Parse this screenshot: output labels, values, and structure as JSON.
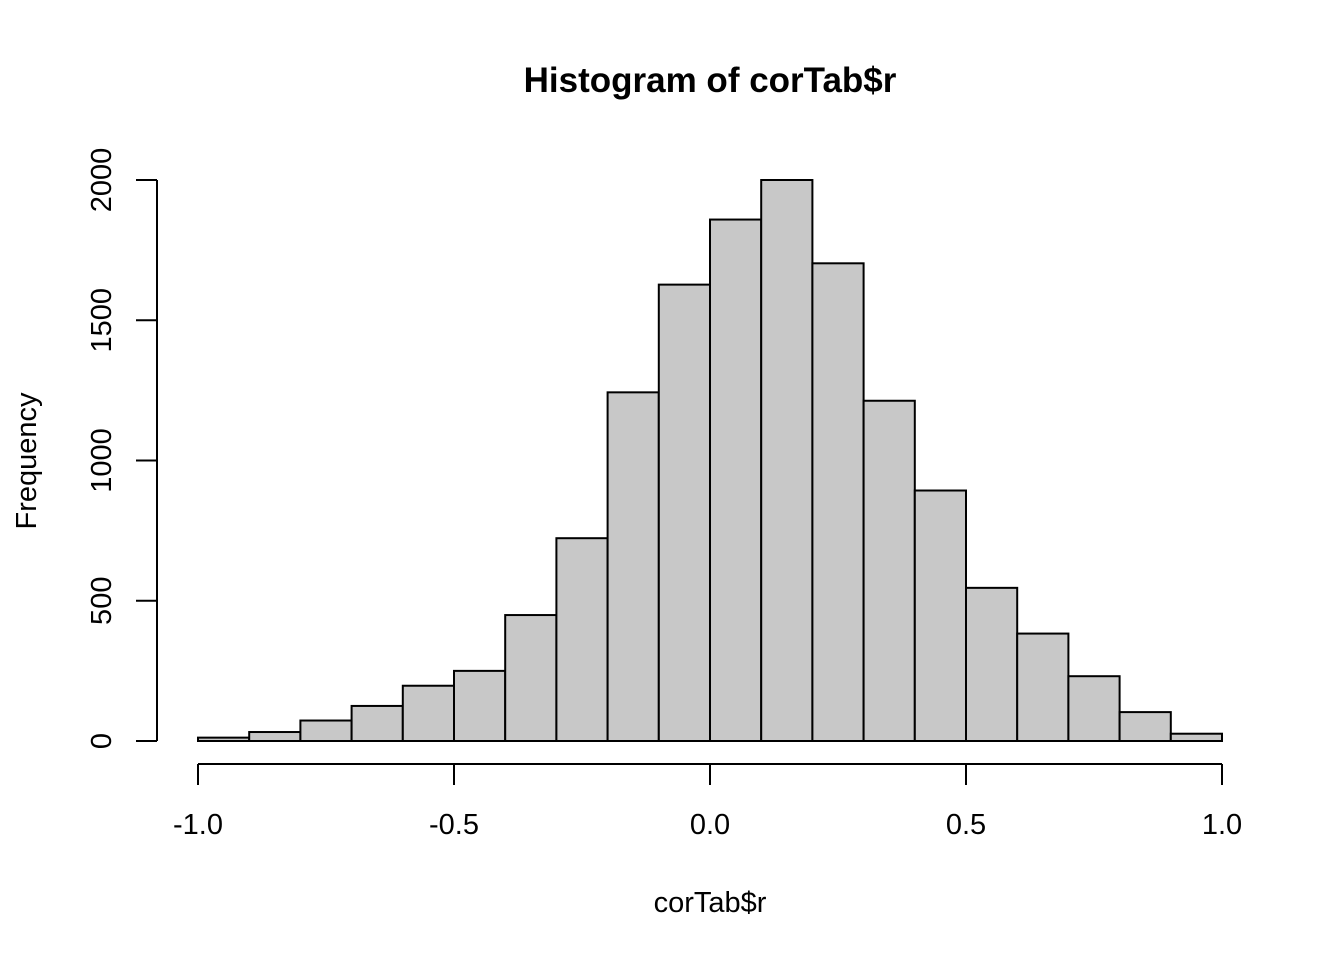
{
  "chart_data": {
    "type": "bar",
    "title": "Histogram of corTab$r",
    "xlabel": "corTab$r",
    "ylabel": "Frequency",
    "bin_edges": [
      -1.0,
      -0.9,
      -0.8,
      -0.7,
      -0.6,
      -0.5,
      -0.4,
      -0.3,
      -0.2,
      -0.1,
      0.0,
      0.1,
      0.2,
      0.3,
      0.4,
      0.5,
      0.6,
      0.7,
      0.8,
      0.9,
      1.0
    ],
    "values": [
      12,
      32,
      73,
      125,
      197,
      250,
      449,
      723,
      1243,
      1627,
      1859,
      2000,
      1703,
      1213,
      893,
      546,
      383,
      231,
      103,
      26
    ],
    "xlim": [
      -1.0,
      1.0
    ],
    "ylim": [
      0,
      2000
    ],
    "x_ticks": [
      -1.0,
      -0.5,
      0.0,
      0.5,
      1.0
    ],
    "x_tick_labels": [
      "-1.0",
      "-0.5",
      "0.0",
      "0.5",
      "1.0"
    ],
    "y_ticks": [
      0,
      500,
      1000,
      1500,
      2000
    ],
    "y_tick_labels": [
      "0",
      "500",
      "1000",
      "1500",
      "2000"
    ],
    "grid": false,
    "bar_color": "#c8c8c8"
  }
}
